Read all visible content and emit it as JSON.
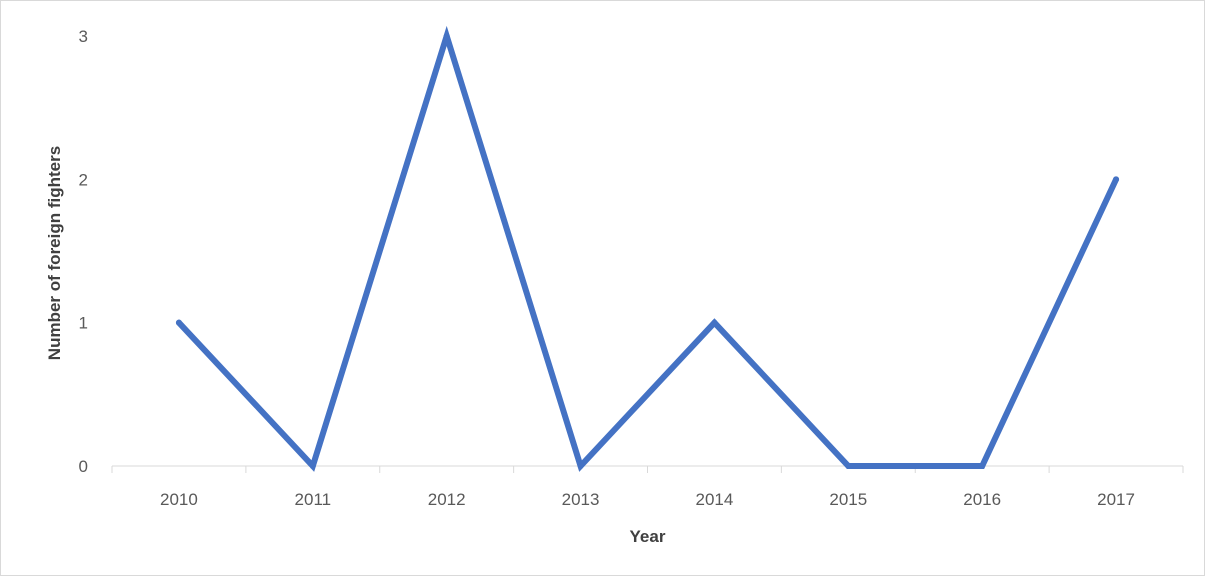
{
  "chart_data": {
    "type": "line",
    "categories": [
      "2010",
      "2011",
      "2012",
      "2013",
      "2014",
      "2015",
      "2016",
      "2017"
    ],
    "series": [
      {
        "values": [
          1,
          0,
          3,
          0,
          1,
          0,
          0,
          2
        ],
        "color": "#4472c4"
      }
    ],
    "title": "",
    "xlabel": "Year",
    "ylabel": "Number of foreign fighters",
    "ylim": [
      0,
      3
    ],
    "yticks": [
      "0",
      "1",
      "2",
      "3"
    ],
    "grid": false,
    "legend": "none"
  }
}
